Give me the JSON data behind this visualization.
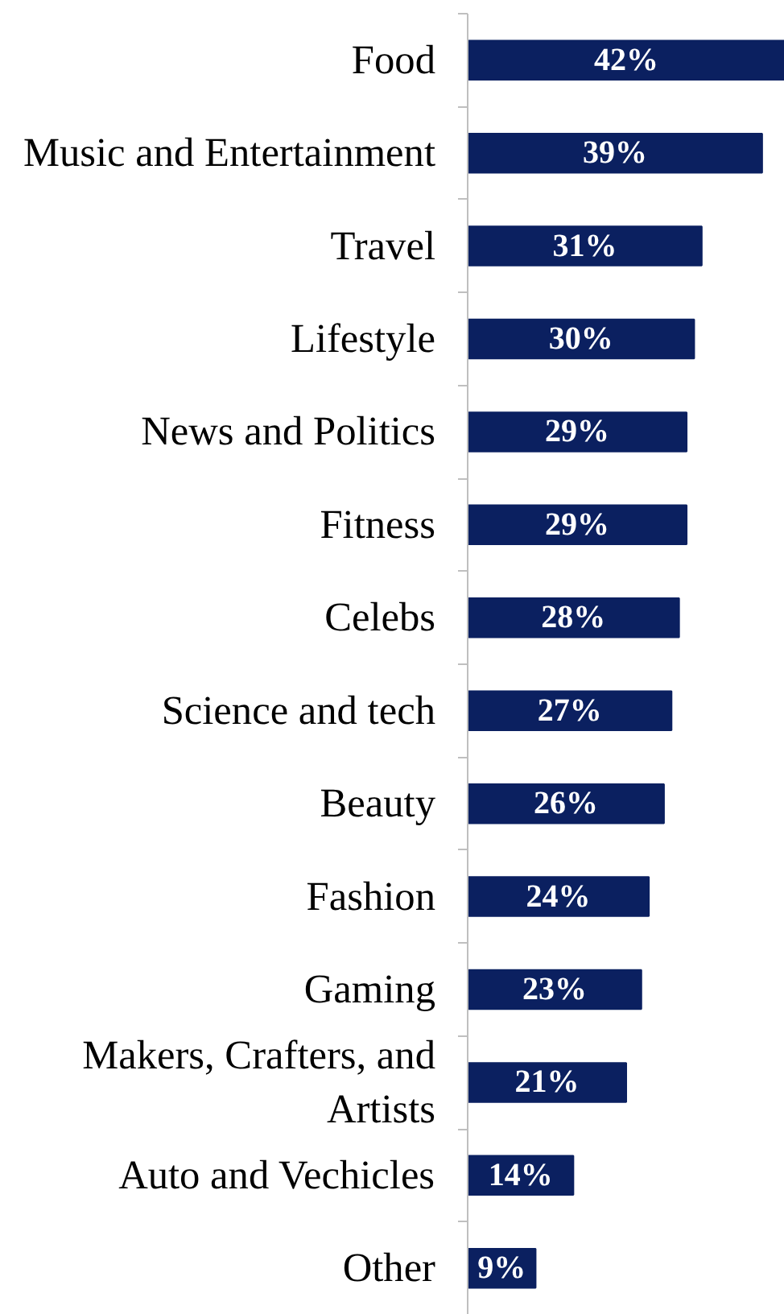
{
  "chart_data": {
    "type": "bar",
    "orientation": "horizontal",
    "data_labels": true,
    "grid": false,
    "categories": [
      "Food",
      "Music and Entertainment",
      "Travel",
      "Lifestyle",
      "News and Politics",
      "Fitness",
      "Celebs",
      "Science and tech",
      "Beauty",
      "Fashion",
      "Gaming",
      "Makers, Crafters, and Artists",
      "Auto and Vechicles",
      "Other"
    ],
    "values": [
      42,
      39,
      31,
      30,
      29,
      29,
      28,
      27,
      26,
      24,
      23,
      21,
      14,
      9
    ],
    "value_labels": [
      "42%",
      "39%",
      "31%",
      "30%",
      "29%",
      "29%",
      "28%",
      "27%",
      "26%",
      "24%",
      "23%",
      "21%",
      "14%",
      "9%"
    ],
    "color": "#0b2060"
  }
}
